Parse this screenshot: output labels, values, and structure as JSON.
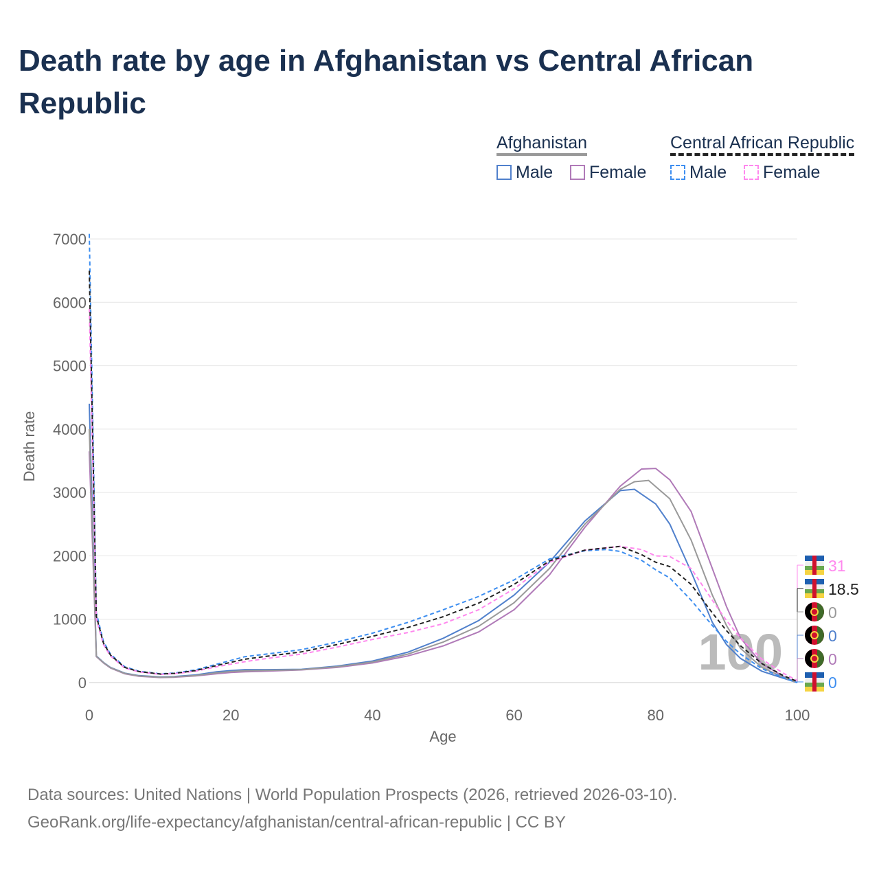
{
  "title": "Death rate by age in Afghanistan vs Central African Republic",
  "legend": {
    "group1": "Afghanistan",
    "group2": "Central African Republic",
    "male": "Male",
    "female": "Female"
  },
  "footer": {
    "line1": "Data sources: United Nations | World Population Prospects (2026, retrieved 2026-03-10).",
    "line2": "GeoRank.org/life-expectancy/afghanistan/central-african-republic | CC BY"
  },
  "chart_data": {
    "type": "line",
    "xlabel": "Age",
    "ylabel": "Death rate",
    "xlim": [
      0,
      100
    ],
    "ylim": [
      0,
      7000
    ],
    "xticks": [
      0,
      20,
      40,
      60,
      80,
      100
    ],
    "yticks": [
      0,
      1000,
      2000,
      3000,
      4000,
      5000,
      6000,
      7000
    ],
    "watermark": "100",
    "series": [
      {
        "name": "Afghanistan Male",
        "color": "#5080cc",
        "dash": false,
        "end_label": "0",
        "x": [
          0,
          1,
          2,
          3,
          5,
          7,
          10,
          12,
          15,
          18,
          20,
          22,
          25,
          30,
          35,
          40,
          45,
          50,
          55,
          60,
          65,
          70,
          75,
          77,
          80,
          82,
          85,
          88,
          90,
          92,
          95,
          98,
          100
        ],
        "y": [
          4400,
          420,
          320,
          240,
          150,
          110,
          90,
          95,
          120,
          170,
          190,
          205,
          205,
          210,
          260,
          340,
          480,
          700,
          980,
          1380,
          1900,
          2550,
          3030,
          3050,
          2820,
          2500,
          1750,
          950,
          600,
          380,
          180,
          70,
          0
        ]
      },
      {
        "name": "Afghanistan Female",
        "color": "#b07ab8",
        "dash": false,
        "end_label": "0",
        "x": [
          0,
          1,
          2,
          3,
          5,
          7,
          10,
          12,
          15,
          18,
          20,
          22,
          25,
          30,
          35,
          40,
          45,
          50,
          55,
          60,
          65,
          70,
          75,
          78,
          80,
          82,
          85,
          88,
          90,
          92,
          95,
          98,
          100
        ],
        "y": [
          3650,
          410,
          310,
          230,
          140,
          100,
          80,
          85,
          105,
          140,
          160,
          170,
          180,
          200,
          240,
          310,
          420,
          580,
          800,
          1150,
          1700,
          2450,
          3100,
          3370,
          3380,
          3200,
          2700,
          1800,
          1200,
          700,
          300,
          100,
          0
        ]
      },
      {
        "name": "Afghanistan",
        "color": "#999999",
        "dash": false,
        "end_label": "0",
        "x": [
          0,
          1,
          2,
          3,
          5,
          7,
          10,
          12,
          15,
          18,
          20,
          22,
          25,
          30,
          35,
          40,
          45,
          50,
          55,
          60,
          65,
          70,
          75,
          77,
          79,
          82,
          85,
          88,
          90,
          92,
          95,
          98,
          100
        ],
        "y": [
          4000,
          415,
          315,
          235,
          145,
          105,
          85,
          90,
          112,
          155,
          175,
          188,
          192,
          205,
          250,
          325,
          450,
          640,
          890,
          1260,
          1800,
          2500,
          3050,
          3170,
          3190,
          2900,
          2250,
          1380,
          900,
          540,
          240,
          85,
          0
        ]
      },
      {
        "name": "Central African Republic Male",
        "color": "#3d8ef0",
        "dash": true,
        "end_label": "0",
        "x": [
          0,
          1,
          2,
          3,
          5,
          7,
          10,
          12,
          15,
          18,
          20,
          22,
          25,
          30,
          35,
          40,
          45,
          50,
          55,
          60,
          65,
          70,
          73,
          75,
          78,
          80,
          82,
          85,
          88,
          90,
          92,
          95,
          98,
          100
        ],
        "y": [
          7080,
          1100,
          650,
          450,
          250,
          180,
          140,
          150,
          200,
          290,
          350,
          410,
          450,
          520,
          640,
          780,
          950,
          1150,
          1360,
          1620,
          1950,
          2080,
          2100,
          2070,
          1930,
          1780,
          1650,
          1300,
          900,
          650,
          450,
          220,
          80,
          0
        ]
      },
      {
        "name": "Central African Republic Female",
        "color": "#ff88ee",
        "dash": true,
        "end_label": "31",
        "x": [
          0,
          1,
          2,
          3,
          5,
          7,
          10,
          12,
          15,
          18,
          20,
          22,
          25,
          30,
          35,
          40,
          45,
          50,
          55,
          60,
          65,
          70,
          75,
          78,
          80,
          82,
          85,
          88,
          90,
          92,
          95,
          98,
          100
        ],
        "y": [
          5900,
          1000,
          600,
          420,
          230,
          170,
          130,
          140,
          180,
          250,
          290,
          330,
          380,
          450,
          560,
          680,
          790,
          930,
          1150,
          1480,
          1900,
          2090,
          2150,
          2100,
          2000,
          1990,
          1800,
          1300,
          980,
          700,
          370,
          150,
          31
        ]
      },
      {
        "name": "Central African Republic",
        "color": "#222222",
        "dash": true,
        "end_label": "18.5",
        "x": [
          0,
          1,
          2,
          3,
          5,
          7,
          10,
          12,
          15,
          18,
          20,
          22,
          25,
          30,
          35,
          40,
          45,
          50,
          55,
          60,
          65,
          70,
          75,
          78,
          80,
          82,
          85,
          88,
          90,
          92,
          95,
          98,
          100
        ],
        "y": [
          6500,
          1050,
          625,
          435,
          240,
          175,
          135,
          145,
          190,
          270,
          320,
          370,
          415,
          485,
          600,
          730,
          870,
          1040,
          1255,
          1550,
          1920,
          2090,
          2150,
          2020,
          1900,
          1830,
          1550,
          1100,
          820,
          580,
          300,
          110,
          18.5
        ]
      }
    ]
  }
}
